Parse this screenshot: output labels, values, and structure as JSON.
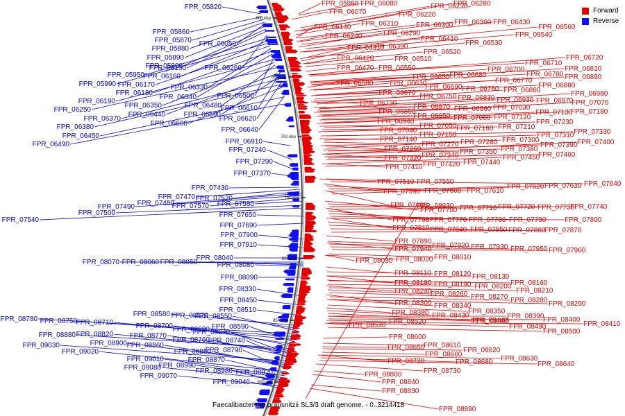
{
  "title": "Faecalibacterium prausnitzii SL3/3 draft genome. - 0..3214418",
  "legend": [
    {
      "label": "Forward",
      "color": "#e00000"
    },
    {
      "label": "Reverse",
      "color": "#1010ee"
    }
  ],
  "ticks": [
    "600 kbp",
    "650 kbp",
    "700 kbp",
    "750 kbp",
    "800 kbp",
    "850 kbp",
    "900 kbp"
  ],
  "forward_genes": [
    "FPR_05980",
    "FPR_06080",
    "FPR_06230",
    "FPR_06280",
    "FPR_06070",
    "FPR_06220",
    "FPR_06210",
    "FPR_06300",
    "FPR_06360",
    "FPR_06430",
    "FPR_06140",
    "FPR_06560",
    "FPR_06240",
    "FPR_06290",
    "FPR_06540",
    "FPR_06410",
    "FPR_06530",
    "FPR_06310",
    "FPR_06390",
    "FPR_06520",
    "FPR_06720",
    "FPR_06420",
    "FPR_06510",
    "FPR_06710",
    "FPR_06810",
    "FPR_06470",
    "FPR_06550",
    "FPR_06700",
    "FPR_06780",
    "FPR_06890",
    "FPR_06650",
    "FPR_06680",
    "FPR_06770",
    "FPR_06880",
    "FPR_06580",
    "FPR_06630",
    "FPR_06690",
    "FPR_06760",
    "FPR_06860",
    "FPR_06980",
    "FPR_06670",
    "FPR_06750",
    "FPR_06830",
    "FPR_06930",
    "FPR_06970",
    "FPR_07070",
    "FPR_06730",
    "FPR_06870",
    "FPR_06960",
    "FPR_07030",
    "FPR_07130",
    "FPR_07180",
    "FPR_06850",
    "FPR_06950",
    "FPR_07060",
    "FPR_07120",
    "FPR_07230",
    "FPR_06940",
    "FPR_07050",
    "FPR_07160",
    "FPR_07210",
    "FPR_07330",
    "FPR_07040",
    "FPR_07150",
    "FPR_07310",
    "FPR_07140",
    "FPR_07270",
    "FPR_07280",
    "FPR_07300",
    "FPR_07390",
    "FPR_07400",
    "FPR_07260",
    "FPR_07350",
    "FPR_07380",
    "FPR_07460",
    "FPR_07320",
    "FPR_07340",
    "FPR_07440",
    "FPR_07450",
    "FPR_07410",
    "FPR_07420",
    "FPR_07550",
    "FPR_07510",
    "FPR_07640",
    "FPR_07590",
    "FPR_07600",
    "FPR_07610",
    "FPR_07620",
    "FPR_07630",
    "FPR_07660",
    "FPR_07740",
    "FPR_07700",
    "FPR_07710",
    "FPR_07720",
    "FPR_07730",
    "FPR_07800",
    "FPR_07760",
    "FPR_07770",
    "FPR_07780",
    "FPR_07790",
    "FPR_07810",
    "FPR_07840",
    "FPR_07850",
    "FPR_07860",
    "FPR_07870",
    "FPR_07890",
    "FPR_07920",
    "FPR_07930",
    "FPR_07950",
    "FPR_07960",
    "FPR_07940",
    "FPR_08010",
    "FPR_08030",
    "FPR_08020",
    "FPR_08110",
    "FPR_08120",
    "FPR_08130",
    "FPR_08160",
    "FPR_08180",
    "FPR_08190",
    "FPR_08200",
    "FPR_08210",
    "FPR_08240",
    "FPR_08260",
    "FPR_08270",
    "FPR_08280",
    "FPR_08290",
    "FPR_08300",
    "FPR_08340",
    "FPR_08350",
    "FPR_08380",
    "FPR_08430",
    "FPR_08440",
    "FPR_08390",
    "FPR_08400",
    "FPR_08410",
    "FPR_08460",
    "FPR_08520",
    "FPR_08530",
    "FPR_08490",
    "FPR_08500",
    "FPR_08600",
    "FPR_08610",
    "FPR_08620",
    "FPR_08650",
    "FPR_08660",
    "FPR_08630",
    "FPR_08680",
    "FPR_08640",
    "FPR_08720",
    "FPR_08730",
    "FPR_08800",
    "FPR_08840",
    "FPR_08830",
    "FPR_08890",
    "FPR_08930"
  ],
  "reverse_genes": [
    "FPR_05820",
    "FPR_05860",
    "FPR_05870",
    "FPR_05880",
    "FPR_06050",
    "FPR_05890",
    "FPR_05900",
    "FPR_06150",
    "FPR_06260",
    "FPR_05950",
    "FPR_06160",
    "FPR_05990",
    "FPR_06170",
    "FPR_06330",
    "FPR_06180",
    "FPR_06340",
    "FPR_06500",
    "FPR_06190",
    "FPR_06350",
    "FPR_06480",
    "FPR_06250",
    "FPR_06610",
    "FPR_06440",
    "FPR_06590",
    "FPR_06370",
    "FPR_06620",
    "FPR_06380",
    "FPR_06600",
    "FPR_06640",
    "FPR_06450",
    "FPR_06490",
    "FPR_06910",
    "FPR_07240",
    "FPR_07290",
    "FPR_07370",
    "FPR_07430",
    "FPR_07470",
    "FPR_07520",
    "FPR_07480",
    "FPR_07490",
    "FPR_07570",
    "FPR_07580",
    "FPR_07500",
    "FPR_07540",
    "FPR_07650",
    "FPR_07690",
    "FPR_07900",
    "FPR_07910",
    "FPR_08040",
    "FPR_08070",
    "FPR_08060",
    "FPR_08050",
    "FPR_08080",
    "FPR_08090",
    "FPR_08330",
    "FPR_08450",
    "FPR_08510",
    "FPR_08580",
    "FPR_08570",
    "FPR_08550",
    "FPR_08780",
    "FPR_08750",
    "FPR_08710",
    "FPR_08590",
    "FPR_08700",
    "FPR_08690",
    "FPR_08880",
    "FPR_08820",
    "FPR_08770",
    "FPR_08670",
    "FPR_08760",
    "FPR_08740",
    "FPR_09030",
    "FPR_08900",
    "FPR_08860",
    "FPR_08850",
    "FPR_08790",
    "FPR_09020",
    "FPR_08870",
    "FPR_09010",
    "FPR_08990",
    "FPR_09080",
    "FPR_08980",
    "FPR_08920",
    "FPR_09070",
    "FPR_09040"
  ]
}
